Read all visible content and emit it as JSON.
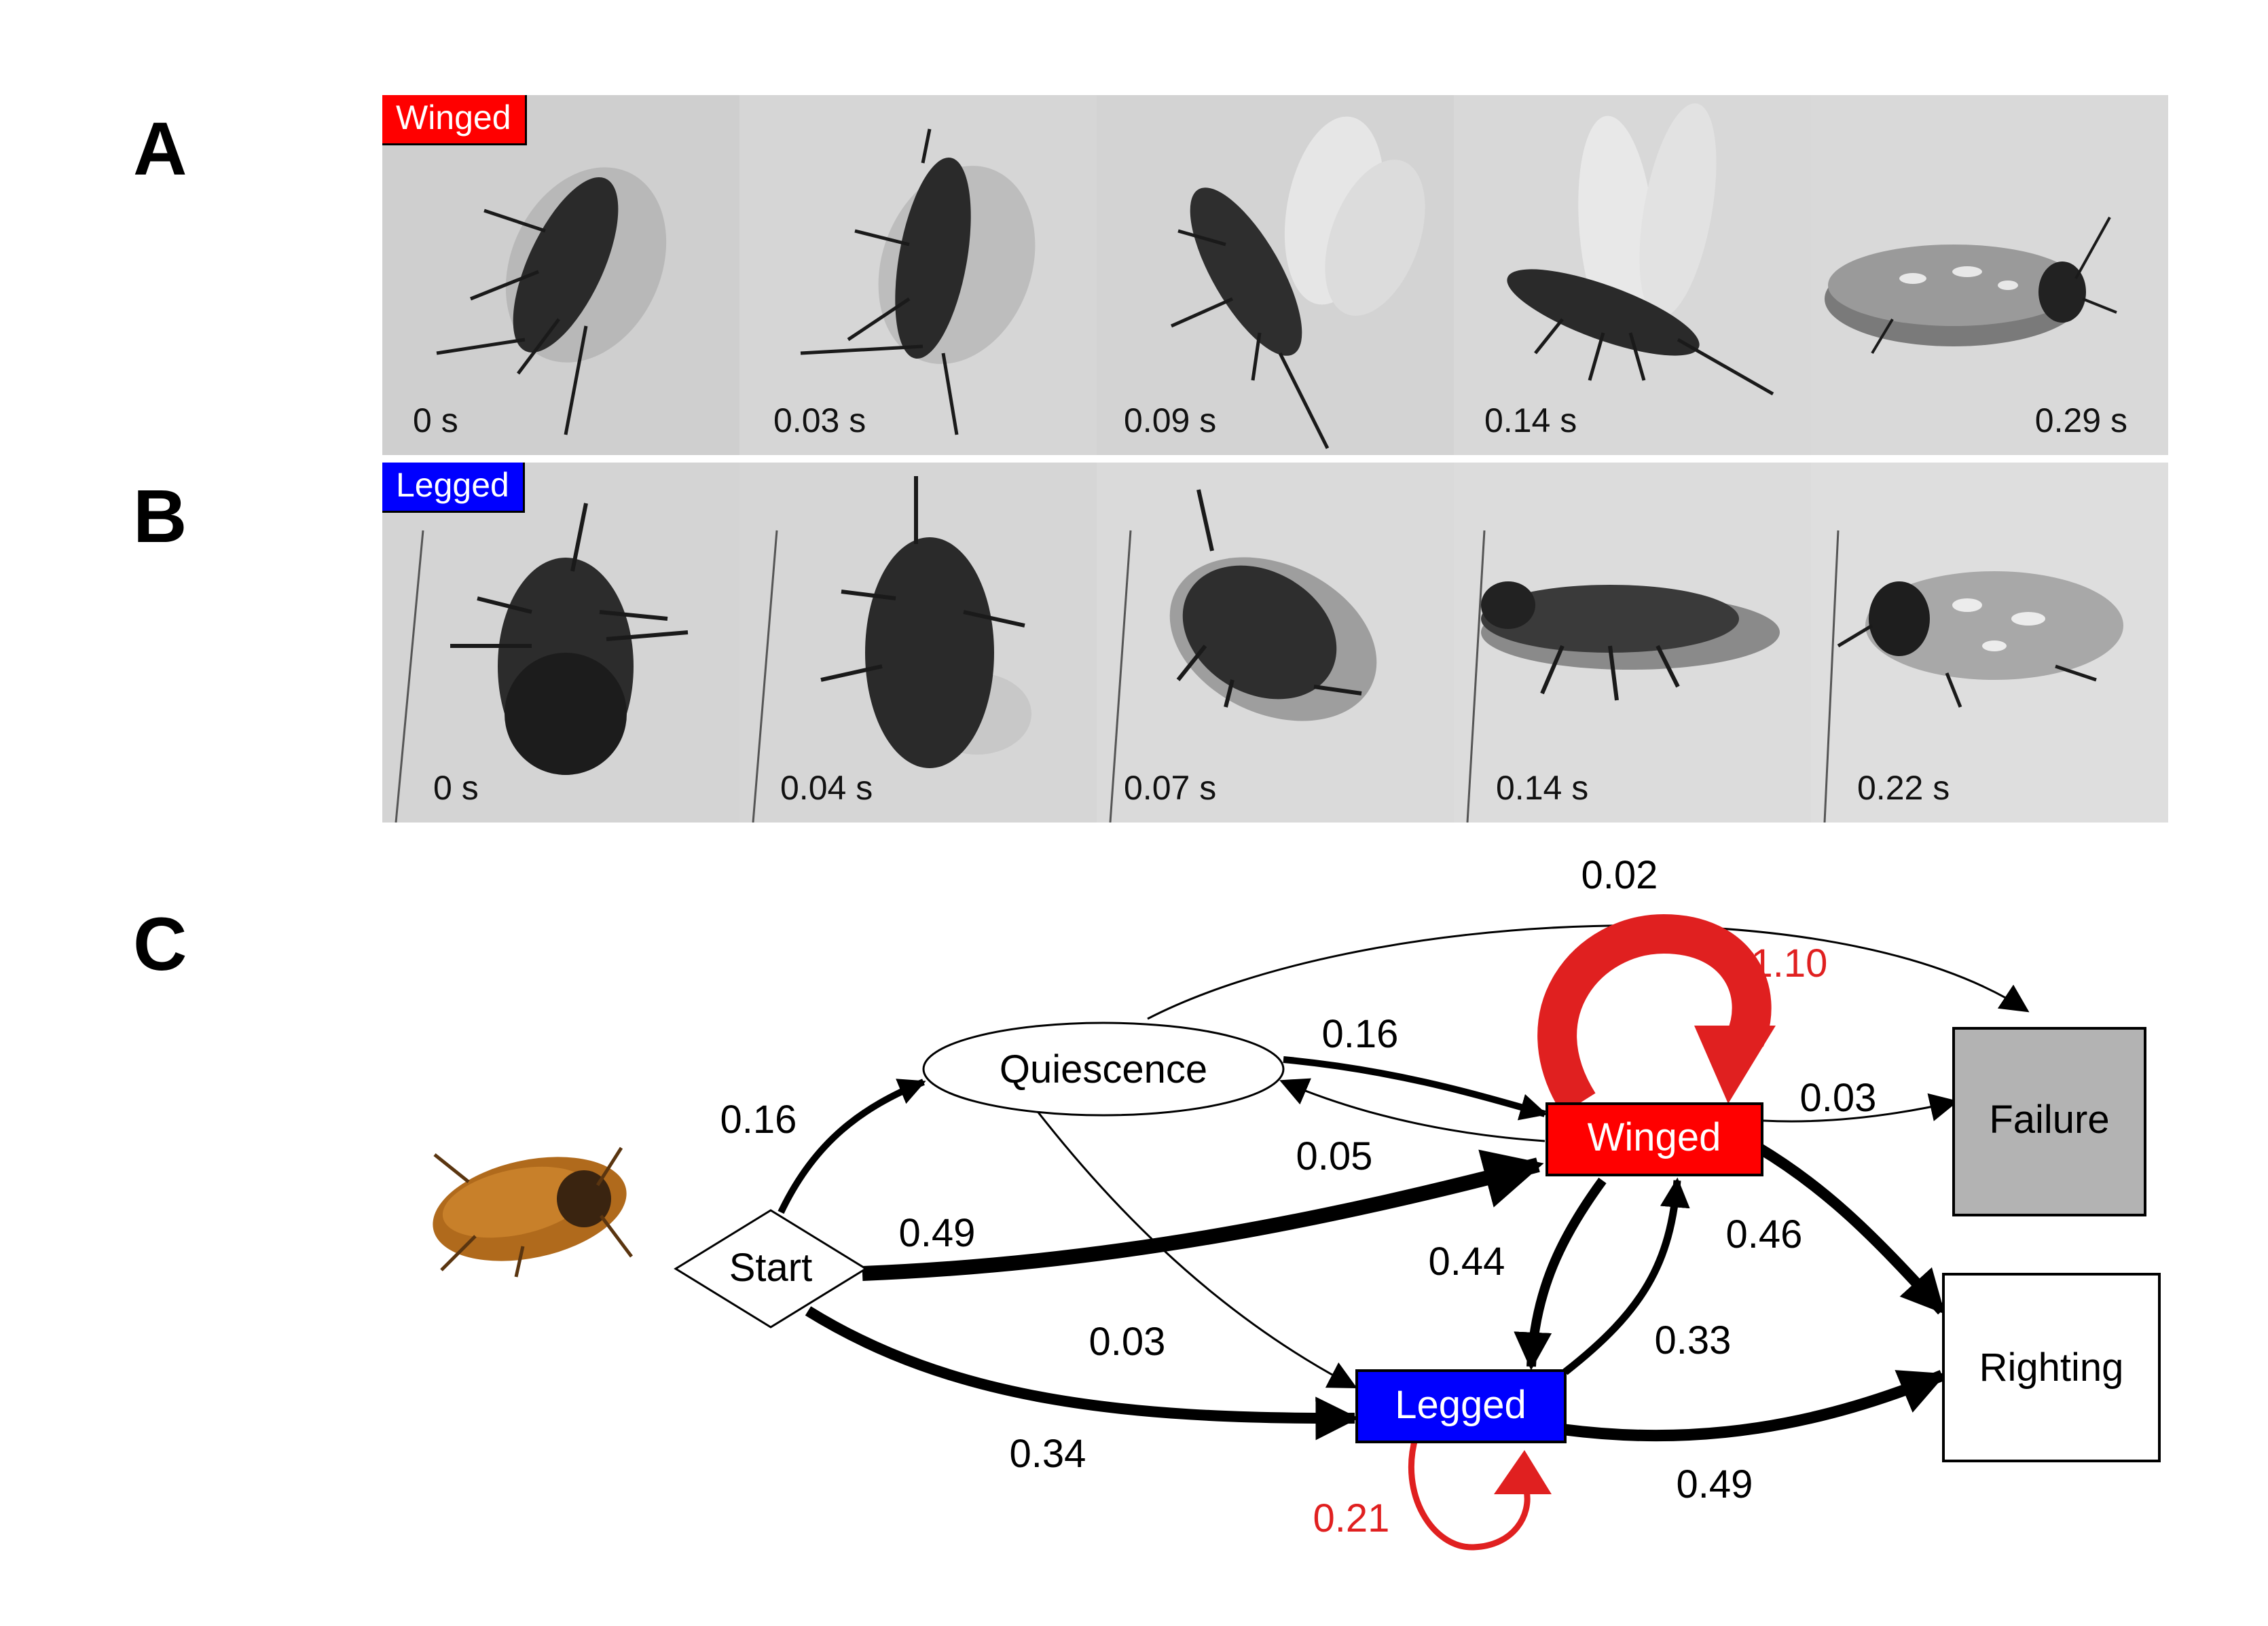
{
  "panels": {
    "a_letter": "A",
    "b_letter": "B",
    "c_letter": "C"
  },
  "strip_a": {
    "badge": "Winged",
    "badge_color": "#ff0000",
    "frames": [
      "0 s",
      "0.03 s",
      "0.09 s",
      "0.14 s",
      "0.29 s"
    ]
  },
  "strip_b": {
    "badge": "Legged",
    "badge_color": "#0000ff",
    "frames": [
      "0 s",
      "0.04 s",
      "0.07 s",
      "0.14 s",
      "0.22 s"
    ]
  },
  "diagram": {
    "colors": {
      "winged": "#ff0000",
      "legged": "#0000ff",
      "failure": "#b3b3b3",
      "self_loop": "#e02020"
    },
    "nodes": {
      "start": "Start",
      "quiescence": "Quiescence",
      "winged": "Winged",
      "legged": "Legged",
      "failure": "Failure",
      "righting": "Righting"
    },
    "edges": {
      "start_quiescence": "0.16",
      "start_winged": "0.49",
      "start_legged": "0.34",
      "quiescence_winged": "0.16",
      "winged_quiescence": "0.05",
      "quiescence_failure": "0.02",
      "quiescence_legged": "0.03",
      "winged_self": "1.10",
      "winged_failure": "0.03",
      "winged_legged": "0.44",
      "legged_winged": "0.33",
      "winged_righting": "0.46",
      "legged_righting": "0.49",
      "legged_self": "0.21"
    }
  }
}
